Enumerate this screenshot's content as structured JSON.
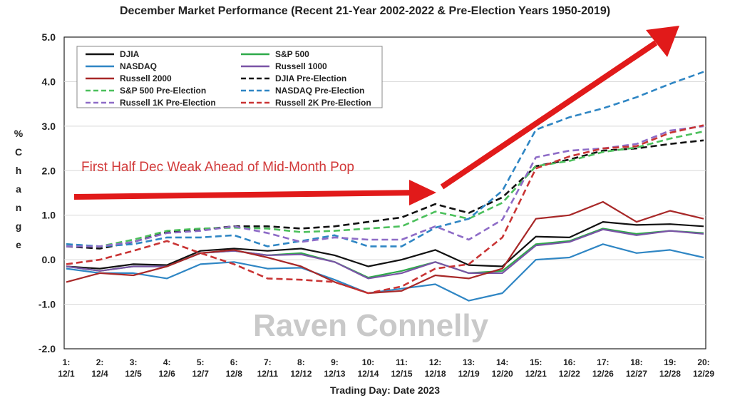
{
  "chart_data": {
    "type": "line",
    "title": "December Market Performance (Recent 21-Year 2002-2022 & Pre-Election Years 1950-2019)",
    "xlabel": "Trading Day: Date 2023",
    "ylabel": "% Change",
    "ylabel_chars": [
      "%",
      "C",
      "h",
      "a",
      "n",
      "g",
      "e"
    ],
    "ylim": [
      -2.0,
      5.0
    ],
    "yticks": [
      "5.0",
      "4.0",
      "3.0",
      "2.0",
      "1.0",
      "0.0",
      "-1.0",
      "-2.0"
    ],
    "ytick_values": [
      5,
      4,
      3,
      2,
      1,
      0,
      -1,
      -2
    ],
    "categories_top": [
      "1:",
      "2:",
      "3:",
      "4:",
      "5:",
      "6:",
      "7:",
      "8:",
      "9:",
      "10:",
      "11:",
      "12:",
      "13:",
      "14:",
      "15:",
      "16:",
      "17:",
      "18:",
      "19:",
      "20:"
    ],
    "categories_bottom": [
      "12/1",
      "12/4",
      "12/5",
      "12/6",
      "12/7",
      "12/8",
      "12/11",
      "12/12",
      "12/13",
      "12/14",
      "12/15",
      "12/18",
      "12/19",
      "12/20",
      "12/21",
      "12/22",
      "12/26",
      "12/27",
      "12/28",
      "12/29"
    ],
    "series": [
      {
        "name": "DJIA",
        "color": "#111111",
        "dash": "solid",
        "values": [
          -0.15,
          -0.2,
          -0.1,
          -0.12,
          0.2,
          0.25,
          0.2,
          0.25,
          0.1,
          -0.15,
          0.0,
          0.22,
          -0.12,
          -0.15,
          0.52,
          0.5,
          0.85,
          0.78,
          0.8,
          0.75
        ]
      },
      {
        "name": "S&P 500",
        "color": "#2eaa4a",
        "dash": "solid",
        "values": [
          -0.15,
          -0.25,
          -0.15,
          -0.15,
          0.15,
          0.2,
          0.1,
          0.15,
          -0.05,
          -0.4,
          -0.25,
          -0.05,
          -0.3,
          -0.25,
          0.35,
          0.42,
          0.7,
          0.58,
          0.65,
          0.6
        ]
      },
      {
        "name": "NASDAQ",
        "color": "#2f86c4",
        "dash": "solid",
        "values": [
          -0.2,
          -0.3,
          -0.3,
          -0.42,
          -0.1,
          -0.05,
          -0.2,
          -0.18,
          -0.45,
          -0.75,
          -0.65,
          -0.55,
          -0.92,
          -0.75,
          0.0,
          0.05,
          0.35,
          0.15,
          0.22,
          0.05
        ]
      },
      {
        "name": "Russell 1000",
        "color": "#7a54a6",
        "dash": "solid",
        "values": [
          -0.15,
          -0.25,
          -0.15,
          -0.15,
          0.15,
          0.2,
          0.1,
          0.12,
          -0.05,
          -0.42,
          -0.3,
          -0.05,
          -0.3,
          -0.3,
          0.32,
          0.4,
          0.68,
          0.55,
          0.65,
          0.58
        ]
      },
      {
        "name": "Russell 2000",
        "color": "#a82828",
        "dash": "solid",
        "values": [
          -0.5,
          -0.3,
          -0.35,
          -0.15,
          0.15,
          0.22,
          0.05,
          -0.15,
          -0.5,
          -0.75,
          -0.7,
          -0.35,
          -0.42,
          -0.2,
          0.92,
          1.0,
          1.3,
          0.85,
          1.1,
          0.92
        ]
      },
      {
        "name": "DJIA Pre-Election",
        "color": "#111111",
        "dash": "dashed",
        "values": [
          0.3,
          0.25,
          0.4,
          0.62,
          0.68,
          0.75,
          0.75,
          0.7,
          0.75,
          0.85,
          0.95,
          1.25,
          1.05,
          1.4,
          2.1,
          2.25,
          2.45,
          2.5,
          2.6,
          2.68
        ]
      },
      {
        "name": "S&P 500 Pre-Election",
        "color": "#4cc05c",
        "dash": "dashed",
        "values": [
          0.35,
          0.3,
          0.45,
          0.65,
          0.7,
          0.72,
          0.7,
          0.62,
          0.65,
          0.7,
          0.75,
          1.08,
          0.92,
          1.28,
          2.1,
          2.22,
          2.42,
          2.52,
          2.72,
          2.88
        ]
      },
      {
        "name": "NASDAQ Pre-Election",
        "color": "#2f86c4",
        "dash": "dashed",
        "values": [
          0.35,
          0.3,
          0.35,
          0.5,
          0.5,
          0.55,
          0.3,
          0.42,
          0.55,
          0.3,
          0.3,
          0.72,
          0.92,
          1.55,
          2.92,
          3.2,
          3.4,
          3.65,
          3.95,
          4.22
        ]
      },
      {
        "name": "Russell 1K Pre-Election",
        "color": "#8e6cc7",
        "dash": "dashed",
        "values": [
          0.3,
          0.3,
          0.4,
          0.6,
          0.65,
          0.75,
          0.6,
          0.4,
          0.5,
          0.45,
          0.45,
          0.75,
          0.45,
          0.9,
          2.3,
          2.45,
          2.5,
          2.6,
          2.9,
          3.0
        ]
      },
      {
        "name": "Russell 2K Pre-Election",
        "color": "#c93434",
        "dash": "dashed",
        "values": [
          -0.1,
          0.0,
          0.2,
          0.42,
          0.15,
          -0.1,
          -0.42,
          -0.45,
          -0.5,
          -0.75,
          -0.6,
          -0.2,
          -0.1,
          0.5,
          2.05,
          2.32,
          2.5,
          2.55,
          2.85,
          3.02
        ]
      }
    ],
    "annotations": [
      {
        "text": "First Half Dec Weak Ahead of Mid-Month Pop",
        "color": "#d23a3a"
      }
    ],
    "legend_position": "top-left",
    "grid": true
  },
  "watermark": "Raven Connelly"
}
